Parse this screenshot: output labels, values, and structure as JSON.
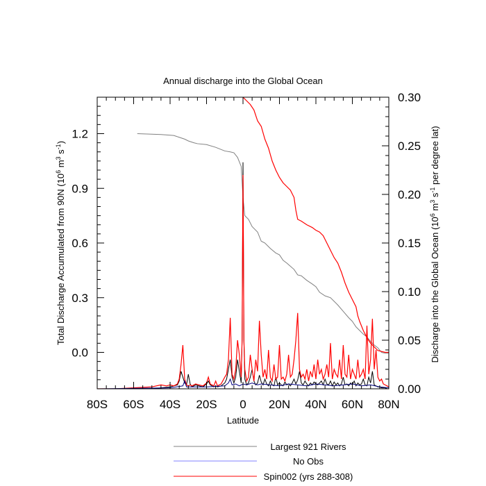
{
  "chart_data": {
    "type": "line",
    "title": "Annual discharge into the Global Ocean",
    "xlabel": "Latitude",
    "ylabel_left": {
      "main": "Total Discharge Accumulated from 90N (10",
      "sup1": "6",
      "mid1": " m",
      "sup2": "3",
      "mid2": " s",
      "sup3": "-1",
      "end": ")"
    },
    "ylabel_right": {
      "main": "Discharge into the Global Ocean (10",
      "sup1": "6",
      "mid1": " m",
      "sup2": "3",
      "mid2": " s",
      "sup3": "-1",
      "end": " per degree lat)"
    },
    "xlim": [
      -80,
      80
    ],
    "ylim_left": [
      -0.2,
      1.4
    ],
    "ylim_right": [
      0.0,
      0.3
    ],
    "x_ticks": [
      {
        "value": -80,
        "label": "80S"
      },
      {
        "value": -60,
        "label": "60S"
      },
      {
        "value": -40,
        "label": "40S"
      },
      {
        "value": -20,
        "label": "20S"
      },
      {
        "value": 0,
        "label": "0"
      },
      {
        "value": 20,
        "label": "20N"
      },
      {
        "value": 40,
        "label": "40N"
      },
      {
        "value": 60,
        "label": "60N"
      },
      {
        "value": 80,
        "label": "80N"
      }
    ],
    "y_ticks_left": [
      {
        "value": 0.0,
        "label": "0.0"
      },
      {
        "value": 0.3,
        "label": "0.3"
      },
      {
        "value": 0.6,
        "label": "0.6"
      },
      {
        "value": 0.9,
        "label": "0.9"
      },
      {
        "value": 1.2,
        "label": "1.2"
      }
    ],
    "y_ticks_right": [
      {
        "value": 0.0,
        "label": "0.00"
      },
      {
        "value": 0.05,
        "label": "0.05"
      },
      {
        "value": 0.1,
        "label": "0.10"
      },
      {
        "value": 0.15,
        "label": "0.15"
      },
      {
        "value": 0.2,
        "label": "0.20"
      },
      {
        "value": 0.25,
        "label": "0.25"
      },
      {
        "value": 0.3,
        "label": "0.30"
      }
    ],
    "legend": [
      {
        "name": "Largest 921 Rivers",
        "color": "#808080"
      },
      {
        "name": "No Obs",
        "color": "#8080ff"
      },
      {
        "name": "Spin002 (yrs 288-308)",
        "color": "#ff0000"
      }
    ],
    "series": [
      {
        "name": "Largest 921 Rivers (accumulated)",
        "axis": "left",
        "color": "#808080",
        "x": [
          -58,
          -45,
          -38,
          -35,
          -32,
          -30,
          -27,
          -25,
          -20,
          -15,
          -10,
          -7,
          -5,
          -3,
          -1,
          0,
          1,
          3,
          5,
          8,
          10,
          12,
          15,
          18,
          20,
          22,
          24,
          28,
          30,
          32,
          35,
          38,
          40,
          42,
          45,
          48,
          50,
          52,
          55,
          58,
          60,
          62,
          64,
          66,
          68,
          70,
          72,
          74,
          76,
          78,
          80
        ],
        "y": [
          1.2,
          1.195,
          1.19,
          1.18,
          1.17,
          1.16,
          1.15,
          1.145,
          1.14,
          1.125,
          1.105,
          1.1,
          1.095,
          1.07,
          1.02,
          0.85,
          0.75,
          0.73,
          0.69,
          0.66,
          0.61,
          0.6,
          0.57,
          0.545,
          0.535,
          0.505,
          0.49,
          0.455,
          0.425,
          0.42,
          0.395,
          0.375,
          0.36,
          0.33,
          0.31,
          0.3,
          0.28,
          0.26,
          0.225,
          0.19,
          0.17,
          0.14,
          0.12,
          0.1,
          0.085,
          0.06,
          0.04,
          0.025,
          0.0,
          -0.005,
          -0.005
        ]
      },
      {
        "name": "Spin002 (yrs 288-308) (accumulated)",
        "axis": "left",
        "color": "#ff0000",
        "x": [
          0,
          2,
          4,
          6,
          8,
          10,
          12,
          14,
          16,
          18,
          20,
          22,
          24,
          26,
          28,
          29,
          30,
          32,
          35,
          38,
          40,
          42,
          44,
          46,
          48,
          50,
          52,
          54,
          56,
          58,
          60,
          62,
          63,
          64,
          66,
          68,
          70,
          72,
          74,
          76,
          78,
          80
        ],
        "y": [
          1.4,
          1.38,
          1.36,
          1.33,
          1.27,
          1.24,
          1.17,
          1.12,
          1.05,
          1.0,
          0.96,
          0.93,
          0.91,
          0.89,
          0.85,
          0.78,
          0.73,
          0.72,
          0.7,
          0.685,
          0.67,
          0.66,
          0.64,
          0.6,
          0.56,
          0.52,
          0.49,
          0.44,
          0.38,
          0.33,
          0.29,
          0.25,
          0.2,
          0.17,
          0.12,
          0.08,
          0.05,
          0.03,
          0.01,
          0.005,
          0.0,
          0.0
        ]
      },
      {
        "name": "Largest 921 Rivers (per degree)",
        "axis": "right",
        "color": "#000000",
        "x": [
          -80,
          -70,
          -60,
          -50,
          -40,
          -36,
          -35,
          -34,
          -33,
          -32,
          -31,
          -30,
          -29,
          -28,
          -26,
          -24,
          -22,
          -20,
          -19,
          -18,
          -17,
          -16,
          -15,
          -14,
          -12,
          -10,
          -9,
          -8,
          -7,
          -6,
          -5,
          -4,
          -3,
          -2,
          -1,
          -0.5,
          0,
          0.5,
          1,
          2,
          3,
          4,
          5,
          6,
          7,
          8,
          9,
          10,
          11,
          12,
          13,
          14,
          15,
          16,
          17,
          18,
          19,
          20,
          21,
          22,
          23,
          24,
          25,
          26,
          27,
          28,
          29,
          30,
          31,
          32,
          33,
          34,
          35,
          36,
          37,
          38,
          39,
          40,
          41,
          42,
          43,
          44,
          45,
          46,
          47,
          48,
          49,
          50,
          51,
          52,
          53,
          54,
          55,
          56,
          57,
          58,
          59,
          60,
          61,
          62,
          63,
          64,
          65,
          66,
          67,
          68,
          69,
          70,
          71,
          72,
          73,
          74,
          75,
          76,
          77,
          78,
          79,
          80
        ],
        "y": [
          0,
          0,
          0,
          0,
          0.002,
          0.004,
          0.008,
          0.018,
          0.012,
          0.006,
          0.004,
          0.015,
          0.005,
          0.002,
          0.004,
          0.003,
          0.002,
          0.005,
          0.008,
          0.004,
          0.003,
          0.002,
          0.003,
          0.002,
          0.003,
          0.006,
          0.01,
          0.02,
          0.03,
          0.012,
          0.006,
          0.012,
          0.03,
          0.018,
          0.006,
          0.05,
          0.233,
          0.05,
          0.01,
          0.004,
          0.006,
          0.012,
          0.02,
          0.008,
          0.004,
          0.006,
          0.014,
          0.007,
          0.004,
          0.01,
          0.005,
          0.003,
          0.008,
          0.004,
          0.003,
          0.012,
          0.004,
          0.006,
          0.004,
          0.003,
          0.007,
          0.004,
          0.005,
          0.003,
          0.006,
          0.01,
          0.005,
          0.009,
          0.018,
          0.006,
          0.004,
          0.008,
          0.005,
          0.003,
          0.006,
          0.004,
          0.007,
          0.005,
          0.004,
          0.006,
          0.008,
          0.004,
          0.01,
          0.005,
          0.004,
          0.008,
          0.003,
          0.007,
          0.004,
          0.006,
          0.003,
          0.005,
          0.012,
          0.004,
          0.005,
          0.003,
          0.006,
          0.004,
          0.008,
          0.003,
          0.006,
          0.004,
          0.005,
          0.01,
          0.004,
          0.003,
          0.012,
          0.006,
          0.018,
          0.004,
          0.003,
          0.002,
          0.002,
          0.001,
          0.001,
          0.001,
          0,
          0
        ]
      },
      {
        "name": "Spin002 (yrs 288-308) (per degree)",
        "axis": "right",
        "color": "#ff0000",
        "x": [
          -80,
          -70,
          -60,
          -50,
          -45,
          -42,
          -40,
          -38,
          -36,
          -35,
          -34,
          -33,
          -32,
          -31,
          -30,
          -29,
          -28,
          -26,
          -24,
          -22,
          -20,
          -19,
          -18,
          -17,
          -16,
          -15,
          -14,
          -12,
          -10,
          -9,
          -8,
          -7,
          -6,
          -5,
          -4,
          -3,
          -2,
          -1,
          -0.5,
          0,
          0.5,
          1,
          2,
          3,
          4,
          5,
          6,
          7,
          8,
          9,
          10,
          11,
          12,
          13,
          14,
          15,
          16,
          17,
          18,
          19,
          20,
          21,
          22,
          23,
          24,
          25,
          26,
          27,
          28,
          29,
          30,
          31,
          32,
          33,
          34,
          35,
          36,
          37,
          38,
          39,
          40,
          41,
          42,
          43,
          44,
          45,
          46,
          47,
          48,
          49,
          50,
          51,
          52,
          53,
          54,
          55,
          56,
          57,
          58,
          59,
          60,
          61,
          62,
          63,
          64,
          65,
          66,
          67,
          68,
          69,
          70,
          71,
          72,
          73,
          74,
          75,
          76,
          77,
          78,
          79,
          80
        ],
        "y": [
          0,
          0,
          0.001,
          0.002,
          0.004,
          0.003,
          0.004,
          0.003,
          0.005,
          0.01,
          0.025,
          0.045,
          0.01,
          0.004,
          0.003,
          0.004,
          0.003,
          0.005,
          0.004,
          0.003,
          0.006,
          0.012,
          0.005,
          0.004,
          0.003,
          0.008,
          0.003,
          0.005,
          0.012,
          0.015,
          0.03,
          0.073,
          0.015,
          0.01,
          0.02,
          0.05,
          0.035,
          0.012,
          0.05,
          0.22,
          0.05,
          0.02,
          0.008,
          0.012,
          0.035,
          0.02,
          0.008,
          0.03,
          0.018,
          0.07,
          0.035,
          0.012,
          0.02,
          0.01,
          0.04,
          0.012,
          0.008,
          0.025,
          0.01,
          0.012,
          0.045,
          0.01,
          0.012,
          0.008,
          0.015,
          0.035,
          0.012,
          0.015,
          0.03,
          0.05,
          0.078,
          0.02,
          0.012,
          0.015,
          0.01,
          0.02,
          0.008,
          0.018,
          0.012,
          0.025,
          0.01,
          0.03,
          0.015,
          0.02,
          0.01,
          0.015,
          0.025,
          0.012,
          0.047,
          0.01,
          0.02,
          0.015,
          0.012,
          0.03,
          0.01,
          0.045,
          0.015,
          0.012,
          0.035,
          0.01,
          0.02,
          0.015,
          0.01,
          0.03,
          0.012,
          0.015,
          0.02,
          0.01,
          0.065,
          0.015,
          0.03,
          0.072,
          0.02,
          0.04,
          0.012,
          0.008,
          0.01,
          0.005,
          0.004,
          0.003,
          0.002
        ]
      },
      {
        "name": "No Obs (per degree)",
        "axis": "right",
        "color": "#000080",
        "x": [
          -80,
          -40,
          -33,
          -32,
          -31,
          -20,
          -10,
          -8,
          -7,
          -6,
          -4,
          -2,
          0,
          2,
          5,
          8,
          10,
          15,
          20,
          25,
          30,
          35,
          40,
          45,
          50,
          55,
          60,
          65,
          70,
          75,
          80
        ],
        "y": [
          0,
          0.001,
          0.003,
          0.008,
          0.002,
          0.002,
          0.003,
          0.006,
          0.01,
          0.004,
          0.005,
          0.003,
          0.005,
          0.004,
          0.006,
          0.004,
          0.005,
          0.004,
          0.003,
          0.005,
          0.004,
          0.003,
          0.005,
          0.004,
          0.003,
          0.004,
          0.005,
          0.003,
          0.004,
          0.002,
          0.001
        ]
      }
    ]
  }
}
